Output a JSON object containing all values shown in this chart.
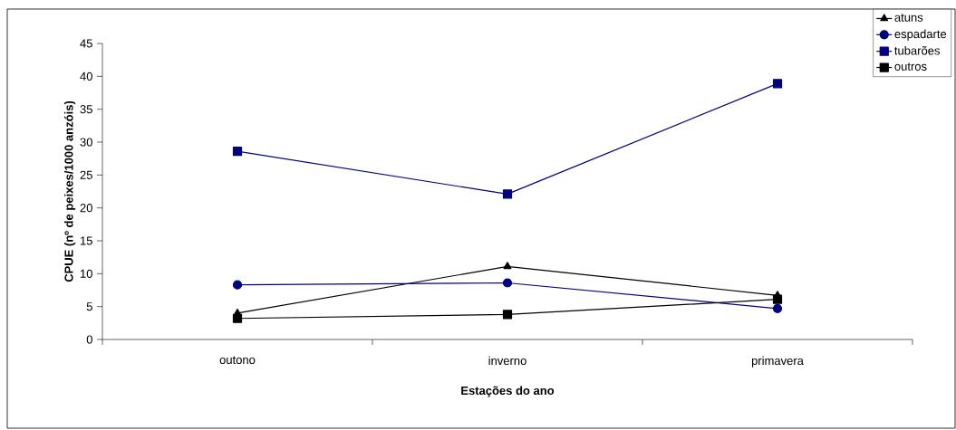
{
  "chart_data": {
    "type": "line",
    "xlabel": "Estações do ano",
    "ylabel": "CPUE (nº de peixes/1000 anzóis)",
    "categories": [
      "outono",
      "inverno",
      "primavera"
    ],
    "series": [
      {
        "name": "atuns",
        "color": "#000000",
        "marker": "triangle",
        "values": [
          4.0,
          11.1,
          6.7
        ]
      },
      {
        "name": "espadarte",
        "color": "#000080",
        "marker": "circle",
        "values": [
          8.3,
          8.6,
          4.7
        ]
      },
      {
        "name": "tubarões",
        "color": "#000080",
        "marker": "square",
        "values": [
          28.6,
          22.1,
          38.9
        ]
      },
      {
        "name": "outros",
        "color": "#000000",
        "marker": "square",
        "values": [
          3.2,
          3.8,
          6.1
        ]
      }
    ],
    "ylim": [
      0,
      45
    ],
    "yticks": [
      0,
      5,
      10,
      15,
      20,
      25,
      30,
      35,
      40,
      45
    ],
    "grid": false,
    "legend": "top right",
    "line_style": "solid"
  }
}
